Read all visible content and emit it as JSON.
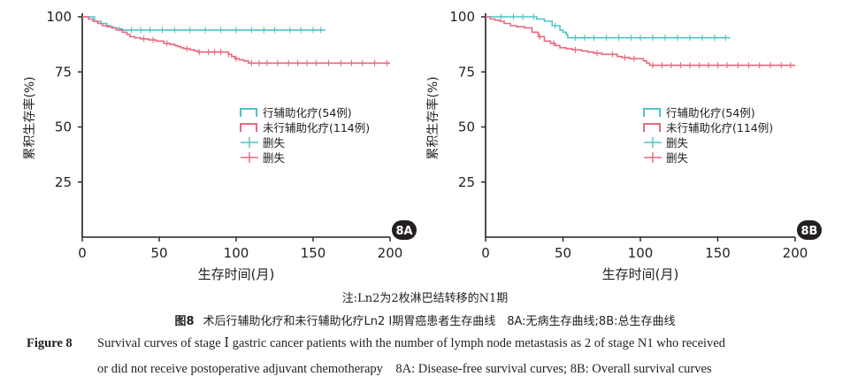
{
  "chart_data": [
    {
      "type": "line",
      "subtype": "kaplan-meier",
      "panel_label": "8A",
      "xlabel": "生存时间(月)",
      "ylabel": "累积生存率(%)",
      "xlim": [
        0,
        200
      ],
      "ylim": [
        0,
        100
      ],
      "xticks": [
        0,
        50,
        100,
        150,
        200
      ],
      "yticks": [
        25,
        50,
        75,
        100
      ],
      "legend_position": "center-right",
      "legend": [
        {
          "label": "行辅助化疗(54例)",
          "kind": "step",
          "color": "#4fc3c8"
        },
        {
          "label": "未行辅助化疗(114例)",
          "kind": "step",
          "color": "#e8697d"
        },
        {
          "label": "删失",
          "kind": "censor",
          "color": "#4fc3c8"
        },
        {
          "label": "删失",
          "kind": "censor",
          "color": "#e8697d"
        }
      ],
      "series": [
        {
          "name": "行辅助化疗(54例)",
          "color": "#4fc3c8",
          "x": [
            0,
            5,
            8,
            12,
            16,
            18,
            20,
            24,
            26,
            32,
            158
          ],
          "y": [
            100,
            100,
            98,
            97,
            96,
            95.5,
            95,
            94.5,
            94,
            94,
            94
          ],
          "censor_x": [
            32,
            38,
            44,
            52,
            60,
            70,
            80,
            90,
            100,
            110,
            118,
            125,
            135,
            142,
            150,
            155
          ]
        },
        {
          "name": "未行辅助化疗(114例)",
          "color": "#e8697d",
          "x": [
            0,
            4,
            7,
            10,
            13,
            16,
            19,
            22,
            26,
            29,
            31,
            34,
            38,
            43,
            48,
            53,
            57,
            60,
            62,
            64,
            66,
            70,
            73,
            75,
            78,
            80,
            82,
            84,
            88,
            92,
            95,
            97,
            99,
            102,
            105,
            108,
            200
          ],
          "y": [
            100,
            99,
            98,
            97,
            96,
            95.5,
            95,
            94,
            93,
            92,
            91,
            90.5,
            90,
            89.5,
            89,
            88,
            87.5,
            87,
            86.5,
            86,
            85.5,
            85,
            84.5,
            84,
            84,
            84,
            84,
            84,
            84,
            84,
            83,
            82,
            81,
            80.5,
            80,
            79,
            79
          ],
          "censor_x": [
            40,
            46,
            55,
            68,
            76,
            82,
            86,
            90,
            95,
            100,
            110,
            115,
            120,
            127,
            134,
            140,
            146,
            152,
            160,
            168,
            175,
            182,
            190,
            198
          ]
        }
      ]
    },
    {
      "type": "line",
      "subtype": "kaplan-meier",
      "panel_label": "8B",
      "xlabel": "生存时间(月)",
      "ylabel": "累积生存率(%)",
      "xlim": [
        0,
        200
      ],
      "ylim": [
        0,
        100
      ],
      "xticks": [
        0,
        50,
        100,
        150,
        200
      ],
      "yticks": [
        25,
        50,
        75,
        100
      ],
      "legend_position": "center-right",
      "legend": [
        {
          "label": "行辅助化疗(54例)",
          "kind": "step",
          "color": "#4fc3c8"
        },
        {
          "label": "未行辅助化疗(114例)",
          "kind": "step",
          "color": "#e8697d"
        },
        {
          "label": "删失",
          "kind": "censor",
          "color": "#4fc3c8"
        },
        {
          "label": "删失",
          "kind": "censor",
          "color": "#e8697d"
        }
      ],
      "series": [
        {
          "name": "行辅助化疗(54例)",
          "color": "#4fc3c8",
          "x": [
            0,
            28,
            33,
            38,
            43,
            48,
            50,
            52,
            53,
            158
          ],
          "y": [
            100,
            100,
            99,
            98,
            96,
            94,
            93,
            92,
            90.5,
            90.5
          ],
          "censor_x": [
            10,
            18,
            24,
            31,
            45,
            58,
            64,
            70,
            78,
            86,
            94,
            100,
            108,
            116,
            124,
            132,
            140,
            148,
            155
          ]
        },
        {
          "name": "未行辅助化疗(114例)",
          "color": "#e8697d",
          "x": [
            0,
            3,
            6,
            9,
            12,
            16,
            20,
            25,
            30,
            34,
            38,
            42,
            45,
            48,
            52,
            56,
            62,
            66,
            70,
            75,
            80,
            85,
            88,
            93,
            98,
            102,
            104,
            106,
            200
          ],
          "y": [
            100,
            99,
            98.5,
            98,
            97,
            96,
            95.5,
            95,
            93,
            91,
            89,
            88,
            87,
            86,
            85.5,
            85,
            84.5,
            84,
            83.5,
            83,
            83,
            82,
            81.5,
            81,
            81,
            80,
            79,
            78,
            78
          ],
          "censor_x": [
            35,
            44,
            58,
            72,
            82,
            90,
            96,
            108,
            114,
            120,
            126,
            132,
            138,
            144,
            150,
            156,
            163,
            170,
            177,
            184,
            191,
            197
          ]
        }
      ]
    }
  ],
  "captions": {
    "note": "注:Ln2为2枚淋巴结转移的N1期",
    "figure_label_zh": "图8",
    "figure_text_zh": "术后行辅助化疗和未行辅助化疗Ln2 Ⅰ期胃癌患者生存曲线　8A:无病生存曲线;8B:总生存曲线",
    "figure_label_en": "Figure 8",
    "figure_text_en_1": "Survival curves of stage Ⅰ gastric cancer patients with the number of lymph node metastasis as 2 of stage N1 who received",
    "figure_text_en_2": "or did not receive postoperative adjuvant chemotherapy　8A: Disease-free survival curves; 8B: Overall survival curves"
  }
}
